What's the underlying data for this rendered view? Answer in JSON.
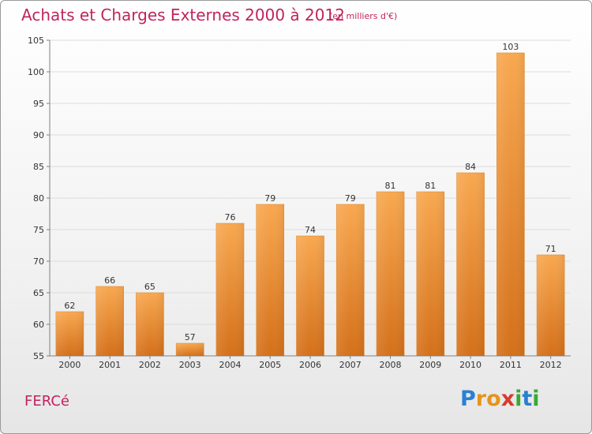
{
  "header": {
    "title": "Achats et Charges Externes 2000 à 2012",
    "subtitle": "(en milliers d'€)"
  },
  "footer": {
    "commune": "FERCé",
    "logo_text": "Proxiti"
  },
  "colors": {
    "title": "#c0245e",
    "bar_light": "#f7a54f",
    "bar_dark": "#d9741a",
    "grid": "#dcdcdc",
    "axis": "#808080"
  },
  "chart_data": {
    "type": "bar",
    "title": "Achats et Charges Externes 2000 à 2012",
    "subtitle": "(en milliers d'€)",
    "categories": [
      "2000",
      "2001",
      "2002",
      "2003",
      "2004",
      "2005",
      "2006",
      "2007",
      "2008",
      "2009",
      "2010",
      "2011",
      "2012"
    ],
    "values": [
      62,
      66,
      65,
      57,
      76,
      79,
      74,
      79,
      81,
      81,
      84,
      103,
      71
    ],
    "data_labels": [
      "62",
      "66",
      "65",
      "57",
      "76",
      "79",
      "74",
      "79",
      "81",
      "81",
      "84",
      "103",
      "71"
    ],
    "xlabel": "",
    "ylabel": "",
    "ylim": [
      55,
      105
    ],
    "yticks": [
      55,
      60,
      65,
      70,
      75,
      80,
      85,
      90,
      95,
      100,
      105
    ],
    "grid": true,
    "legend": "none"
  }
}
